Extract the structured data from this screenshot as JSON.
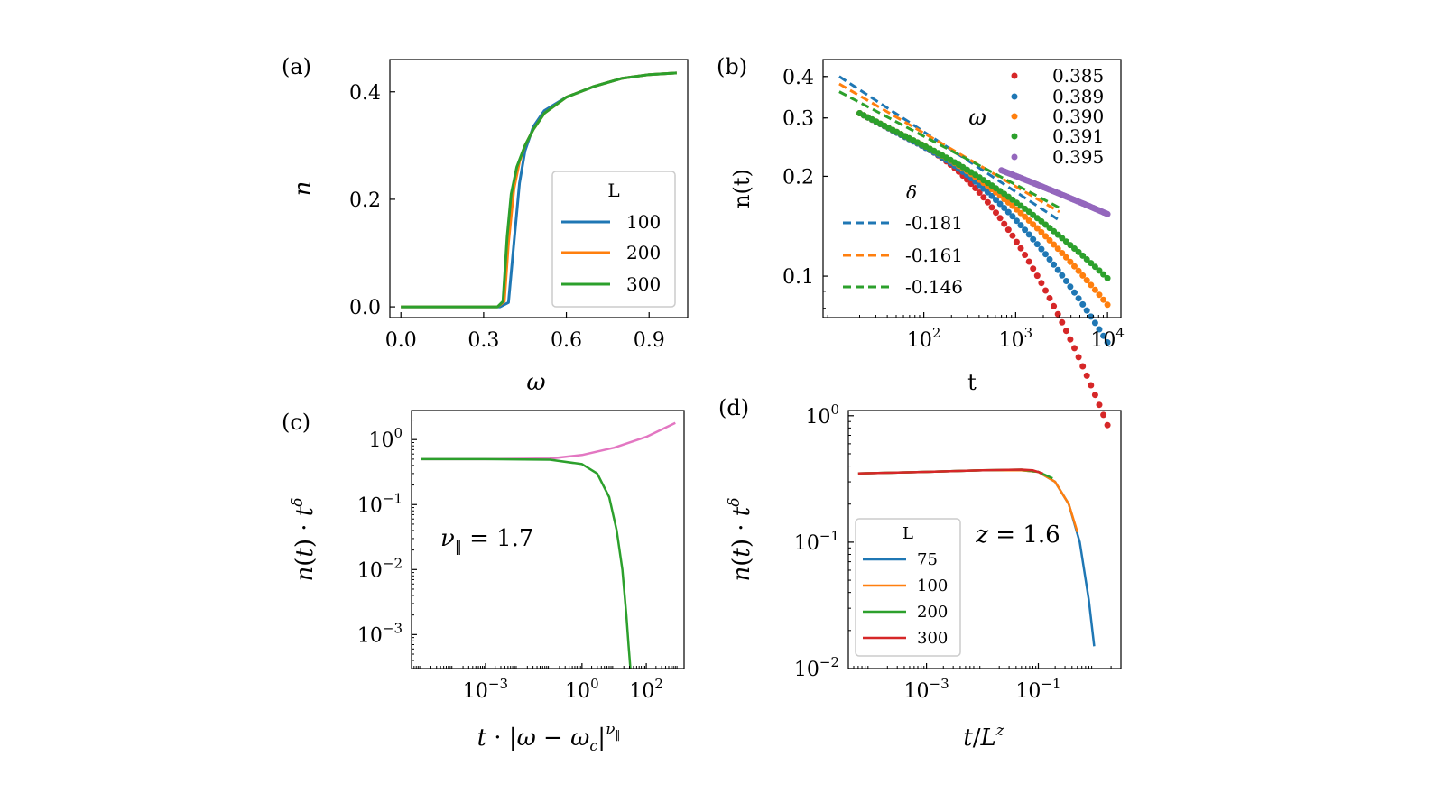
{
  "colors": {
    "blue": "#1f77b4",
    "orange": "#ff7f0e",
    "green": "#2ca02c",
    "red": "#d62728",
    "purple": "#9467bd",
    "pink": "#e377c2",
    "gray": "#7f7f7f"
  },
  "chart_data": [
    {
      "panel": "(a)",
      "type": "line",
      "xlabel": "ω",
      "ylabel": "n",
      "xlim": [
        -0.04,
        1.04
      ],
      "ylim": [
        -0.02,
        0.46
      ],
      "xticks": [
        0.0,
        0.3,
        0.6,
        0.9
      ],
      "xtick_labels": [
        "0.0",
        "0.3",
        "0.6",
        "0.9"
      ],
      "yticks": [
        0.0,
        0.2,
        0.4
      ],
      "ytick_labels": [
        "0.0",
        "0.2",
        "0.4"
      ],
      "legend_title": "L",
      "legend_position": "lower-right",
      "series": [
        {
          "name": "100",
          "color": "#1f77b4",
          "x": [
            0.0,
            0.36,
            0.39,
            0.41,
            0.43,
            0.45,
            0.48,
            0.52,
            0.6,
            0.7,
            0.8,
            0.9,
            1.0
          ],
          "y": [
            0.0,
            0.0,
            0.008,
            0.12,
            0.23,
            0.29,
            0.335,
            0.365,
            0.39,
            0.41,
            0.425,
            0.432,
            0.435
          ]
        },
        {
          "name": "200",
          "color": "#ff7f0e",
          "x": [
            0.0,
            0.35,
            0.375,
            0.39,
            0.41,
            0.43,
            0.45,
            0.48,
            0.52,
            0.6,
            0.7,
            0.8,
            0.9,
            1.0
          ],
          "y": [
            0.0,
            0.0,
            0.01,
            0.12,
            0.22,
            0.27,
            0.3,
            0.33,
            0.36,
            0.39,
            0.41,
            0.425,
            0.432,
            0.435
          ]
        },
        {
          "name": "300",
          "color": "#2ca02c",
          "x": [
            0.0,
            0.35,
            0.37,
            0.385,
            0.4,
            0.42,
            0.45,
            0.48,
            0.52,
            0.6,
            0.7,
            0.8,
            0.9,
            1.0
          ],
          "y": [
            0.0,
            0.0,
            0.01,
            0.13,
            0.21,
            0.26,
            0.3,
            0.33,
            0.36,
            0.39,
            0.41,
            0.425,
            0.432,
            0.435
          ]
        }
      ]
    },
    {
      "panel": "(b)",
      "type": "scatter",
      "xlabel": "t",
      "ylabel": "n(t)",
      "xscale": "log",
      "yscale": "log",
      "xlim": [
        8,
        14000
      ],
      "ylim": [
        0.075,
        0.45
      ],
      "xticks": [
        100,
        1000,
        10000
      ],
      "xtick_labels": [
        "10^2",
        "10^3",
        "10^4"
      ],
      "yticks": [
        0.1,
        0.2,
        0.3,
        0.4
      ],
      "ytick_labels": [
        "0.1",
        "0.2",
        "0.3",
        "0.4"
      ],
      "legend_title": "ω",
      "legend_title_delta": "δ",
      "series": [
        {
          "name": "0.385",
          "color": "#d62728",
          "start": 0.31,
          "slope": -0.145,
          "bend": 0.55,
          "tmin": 20
        },
        {
          "name": "0.389",
          "color": "#1f77b4",
          "start": 0.31,
          "slope": -0.145,
          "bend": 0.3,
          "tmin": 20
        },
        {
          "name": "0.390",
          "color": "#ff7f0e",
          "start": 0.31,
          "slope": -0.14,
          "bend": 0.2,
          "tmin": 20
        },
        {
          "name": "0.391",
          "color": "#2ca02c",
          "start": 0.31,
          "slope": -0.14,
          "bend": 0.12,
          "tmin": 20
        },
        {
          "name": "0.395",
          "color": "#9467bd",
          "start": 0.3,
          "slope": -0.1,
          "bend": 0.02,
          "tmin": 700
        }
      ],
      "fits": [
        {
          "name": "-0.181",
          "color": "#1f77b4",
          "x": [
            12,
            3000
          ],
          "y0": 0.4,
          "slope": -0.181
        },
        {
          "name": "-0.161",
          "color": "#ff7f0e",
          "x": [
            12,
            3000
          ],
          "y0": 0.38,
          "slope": -0.161
        },
        {
          "name": "-0.146",
          "color": "#2ca02c",
          "x": [
            12,
            3000
          ],
          "y0": 0.36,
          "slope": -0.146
        }
      ]
    },
    {
      "panel": "(c)",
      "type": "line",
      "xlabel": "t · |ω − ω_c|^ν∥",
      "ylabel": "n(t) · t^δ",
      "xscale": "log",
      "yscale": "log",
      "xlim": [
        5e-06,
        1500
      ],
      "ylim": [
        0.0003,
        2.8
      ],
      "xticks": [
        0.001,
        1,
        100
      ],
      "xtick_labels": [
        "10^-3",
        "10^0",
        "10^2"
      ],
      "yticks": [
        0.001,
        0.01,
        0.1,
        1
      ],
      "ytick_labels": [
        "10^-3",
        "10^-2",
        "10^-1",
        "10^0"
      ],
      "annotation": "ν∥ = 1.7",
      "series": [
        {
          "name": "upper",
          "color": "#e377c2",
          "x": [
            1e-05,
            0.001,
            0.1,
            1,
            10,
            100,
            800
          ],
          "y": [
            0.5,
            0.5,
            0.51,
            0.58,
            0.75,
            1.1,
            1.8
          ]
        },
        {
          "name": "lower",
          "color": "#2ca02c",
          "x": [
            1e-05,
            0.001,
            0.1,
            1,
            3,
            7,
            12,
            18,
            24,
            28,
            32
          ],
          "y": [
            0.5,
            0.5,
            0.49,
            0.42,
            0.3,
            0.13,
            0.04,
            0.01,
            0.002,
            0.0007,
            0.0003
          ]
        }
      ]
    },
    {
      "panel": "(d)",
      "type": "line",
      "xlabel": "t / L^z",
      "ylabel": "n(t) · t^δ",
      "xscale": "log",
      "yscale": "log",
      "xlim": [
        4e-05,
        3
      ],
      "ylim": [
        0.01,
        1.1
      ],
      "xticks": [
        0.001,
        0.1
      ],
      "xtick_labels": [
        "10^-3",
        "10^-1"
      ],
      "yticks": [
        0.01,
        0.1,
        1
      ],
      "ytick_labels": [
        "10^-2",
        "10^-1",
        "10^0"
      ],
      "annotation": "z = 1.6",
      "legend_title": "L",
      "series": [
        {
          "name": "75",
          "color": "#1f77b4",
          "x": [
            6e-05,
            0.001,
            0.01,
            0.05,
            0.1,
            0.2,
            0.35,
            0.55,
            0.8,
            1.0
          ],
          "y": [
            0.35,
            0.36,
            0.37,
            0.37,
            0.36,
            0.3,
            0.2,
            0.1,
            0.035,
            0.015
          ]
        },
        {
          "name": "100",
          "color": "#ff7f0e",
          "x": [
            6e-05,
            0.001,
            0.01,
            0.05,
            0.1,
            0.2,
            0.35,
            0.5
          ],
          "y": [
            0.35,
            0.36,
            0.37,
            0.37,
            0.36,
            0.3,
            0.2,
            0.12
          ]
        },
        {
          "name": "200",
          "color": "#2ca02c",
          "x": [
            6e-05,
            0.001,
            0.01,
            0.05,
            0.1,
            0.18
          ],
          "y": [
            0.35,
            0.36,
            0.37,
            0.375,
            0.36,
            0.32
          ]
        },
        {
          "name": "300",
          "color": "#d62728",
          "x": [
            6e-05,
            0.001,
            0.01,
            0.05,
            0.08,
            0.12
          ],
          "y": [
            0.35,
            0.36,
            0.37,
            0.375,
            0.37,
            0.35
          ]
        }
      ]
    }
  ],
  "panels": {
    "a": {
      "label": "(a)",
      "xlabel": "ω",
      "ylabel": "n",
      "legend_title": "L",
      "legend": [
        "100",
        "200",
        "300"
      ]
    },
    "b": {
      "label": "(b)",
      "xlabel": "t",
      "ylabel": "n(t)",
      "omega_title": "ω",
      "omega_legend": [
        "0.385",
        "0.389",
        "0.390",
        "0.391",
        "0.395"
      ],
      "delta_title": "δ",
      "delta_legend": [
        "-0.181",
        "-0.161",
        "-0.146"
      ]
    },
    "c": {
      "label": "(c)",
      "annotation_nu": "ν",
      "annotation_rest": " = 1.7"
    },
    "d": {
      "label": "(d)",
      "annotation": "z = 1.6",
      "legend_title": "L",
      "legend": [
        "75",
        "100",
        "200",
        "300"
      ]
    }
  }
}
